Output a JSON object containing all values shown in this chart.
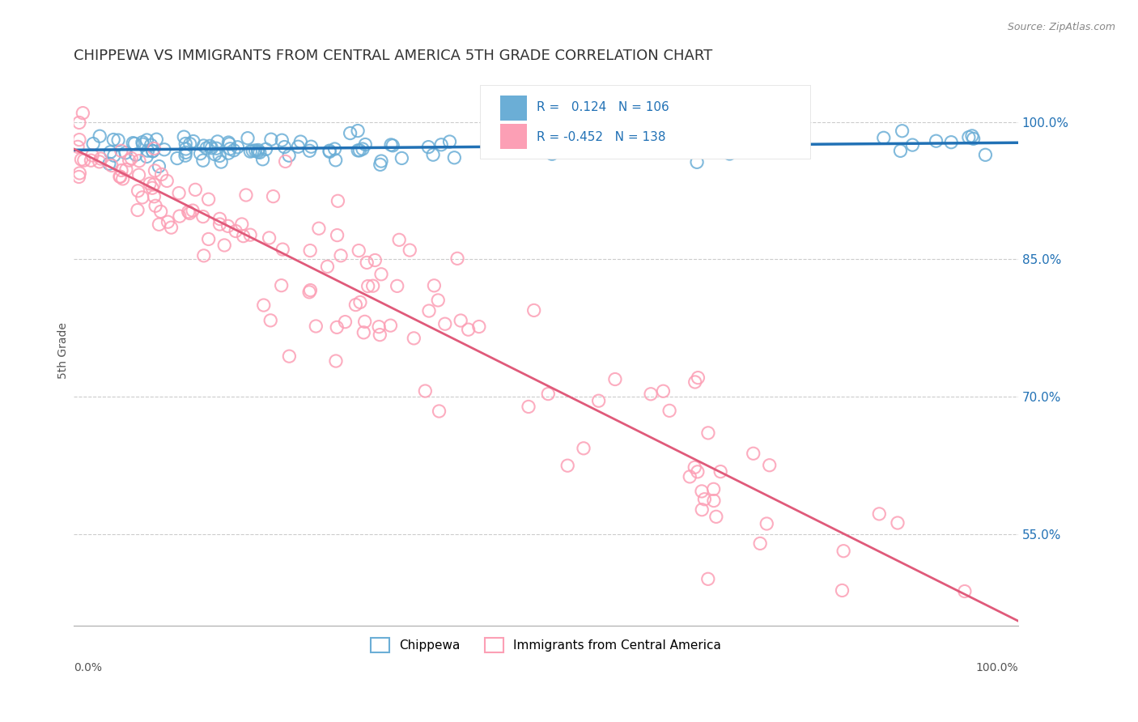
{
  "title": "CHIPPEWA VS IMMIGRANTS FROM CENTRAL AMERICA 5TH GRADE CORRELATION CHART",
  "source": "Source: ZipAtlas.com",
  "ylabel": "5th Grade",
  "ylabel_right_ticks": [
    55.0,
    70.0,
    85.0,
    100.0
  ],
  "xlim": [
    0.0,
    1.0
  ],
  "ylim": [
    0.45,
    1.05
  ],
  "blue_R": 0.124,
  "blue_N": 106,
  "pink_R": -0.452,
  "pink_N": 138,
  "blue_color": "#6baed6",
  "blue_line_color": "#2171b5",
  "pink_color": "#fc9fb5",
  "pink_line_color": "#e05a7a",
  "legend_label_blue": "Chippewa",
  "legend_label_pink": "Immigrants from Central America",
  "background_color": "#ffffff",
  "grid_color": "#cccccc",
  "title_fontsize": 13
}
